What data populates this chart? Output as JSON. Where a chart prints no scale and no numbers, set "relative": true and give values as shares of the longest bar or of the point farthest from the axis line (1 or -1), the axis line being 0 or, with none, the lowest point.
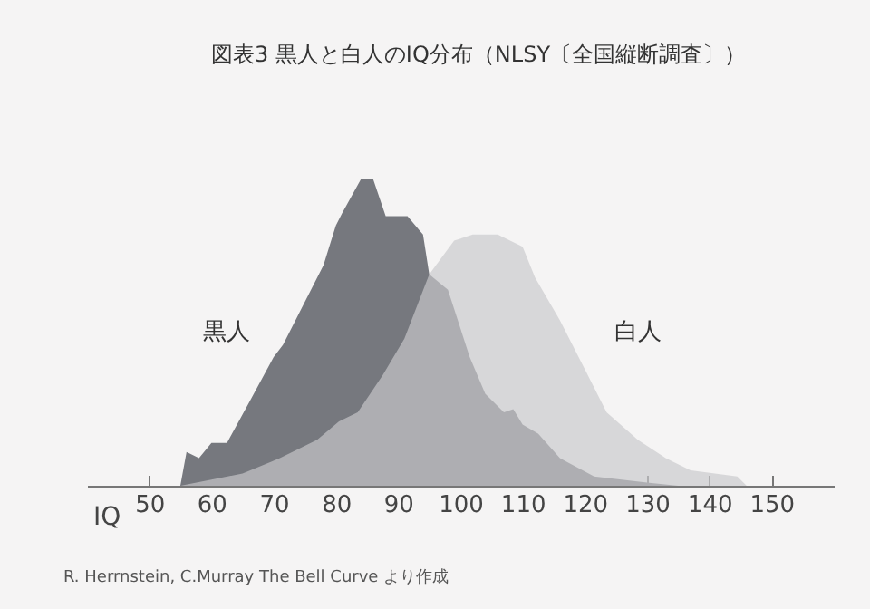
{
  "chart_data": {
    "type": "area",
    "title": "図表3 黒人と白人のIQ分布（NLSY〔全国縦断調査〕）",
    "xlabel": "IQ",
    "relative": true,
    "xlim": [
      40,
      160
    ],
    "xticks": [
      50,
      60,
      70,
      80,
      90,
      100,
      110,
      120,
      130,
      140,
      150
    ],
    "series": [
      {
        "name": "黒人",
        "color": "#76787e",
        "x": [
          55,
          56,
          58,
          60,
          62.5,
          66,
          70,
          71.5,
          75,
          78,
          80,
          81,
          84,
          86,
          88,
          91.5,
          94,
          95,
          98,
          101.5,
          104,
          107,
          108.5,
          110,
          112.5,
          116,
          121.5,
          130,
          135
        ],
        "values": [
          0,
          0.11,
          0.09,
          0.14,
          0.14,
          0.27,
          0.42,
          0.46,
          0.6,
          0.72,
          0.85,
          0.89,
          1,
          1,
          0.88,
          0.88,
          0.82,
          0.69,
          0.64,
          0.42,
          0.3,
          0.24,
          0.25,
          0.2,
          0.17,
          0.09,
          0.03,
          0.01,
          0
        ]
      },
      {
        "name": "白人",
        "color": "#c9c9cc",
        "x": [
          55,
          60,
          65,
          71,
          77,
          80.5,
          83.5,
          87.5,
          91,
          95,
          99,
          102,
          106,
          110,
          112,
          116,
          120,
          123.5,
          128.5,
          133,
          137,
          144.5,
          146
        ],
        "values": [
          0,
          0.02,
          0.04,
          0.09,
          0.15,
          0.21,
          0.24,
          0.36,
          0.48,
          0.69,
          0.8,
          0.82,
          0.82,
          0.78,
          0.68,
          0.54,
          0.38,
          0.24,
          0.15,
          0.09,
          0.05,
          0.03,
          0
        ]
      }
    ],
    "annotations": [
      "R. Herrnstein, C.Murray The Bell Curve より作成"
    ]
  }
}
